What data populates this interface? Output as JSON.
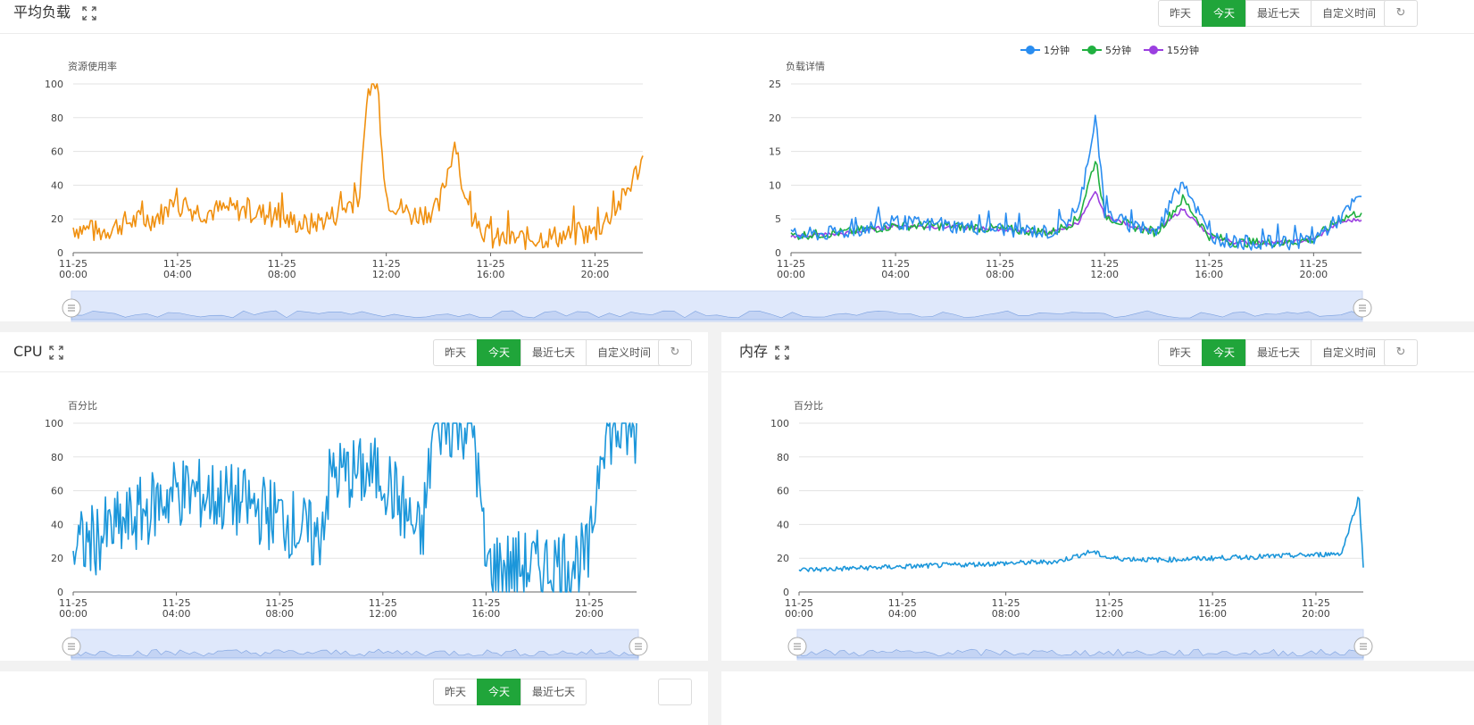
{
  "buttons": {
    "yesterday": "昨天",
    "today": "今天",
    "last7": "最近七天",
    "custom": "自定义时间"
  },
  "refresh_icon": "refresh-icon",
  "x_axis": {
    "dates": [
      "11-25",
      "11-25",
      "11-25",
      "11-25",
      "11-25",
      "11-25"
    ],
    "times": [
      "00:00",
      "04:00",
      "08:00",
      "12:00",
      "16:00",
      "20:00"
    ]
  },
  "load": {
    "title": "平均负载",
    "left_chart": {
      "type": "line",
      "ylabel": "资源使用率",
      "ylim": [
        0,
        100
      ],
      "yticks": [
        "0",
        "20",
        "40",
        "60",
        "80",
        "100"
      ],
      "color": "#f0900f"
    },
    "right_chart": {
      "type": "line",
      "ylabel": "负载详情",
      "ylim": [
        0,
        25
      ],
      "yticks": [
        "0",
        "5",
        "10",
        "15",
        "20",
        "25"
      ],
      "legend": [
        "1分钟",
        "5分钟",
        "15分钟"
      ],
      "colors": [
        "#2a8df0",
        "#20b040",
        "#9b3fe0"
      ]
    }
  },
  "cpu": {
    "title": "CPU",
    "chart": {
      "type": "line",
      "ylabel": "百分比",
      "ylim": [
        0,
        100
      ],
      "yticks": [
        "0",
        "20",
        "40",
        "60",
        "80",
        "100"
      ],
      "color": "#1b96da"
    }
  },
  "mem": {
    "title": "内存",
    "chart": {
      "type": "line",
      "ylabel": "百分比",
      "ylim": [
        0,
        100
      ],
      "yticks": [
        "0",
        "20",
        "40",
        "60",
        "80",
        "100"
      ],
      "color": "#1b96da"
    }
  },
  "chart_data": [
    {
      "type": "line",
      "title": "",
      "ylabel": "资源使用率",
      "ylim": [
        0,
        100
      ],
      "x": [
        "00:00",
        "01:00",
        "02:00",
        "03:00",
        "04:00",
        "05:00",
        "06:00",
        "07:00",
        "08:00",
        "09:00",
        "10:00",
        "11:00",
        "11:20",
        "11:40",
        "12:00",
        "13:00",
        "14:00",
        "14:40",
        "15:00",
        "16:00",
        "17:00",
        "18:00",
        "19:00",
        "20:00",
        "21:00",
        "21:50"
      ],
      "series": [
        {
          "values": [
            15,
            12,
            18,
            20,
            28,
            24,
            26,
            24,
            20,
            16,
            22,
            34,
            100,
            100,
            32,
            22,
            26,
            68,
            28,
            8,
            8,
            9,
            10,
            12,
            30,
            55
          ]
        }
      ]
    },
    {
      "type": "line",
      "title": "",
      "ylabel": "负载详情",
      "ylim": [
        0,
        25
      ],
      "x": [
        "00:00",
        "02:00",
        "04:00",
        "06:00",
        "08:00",
        "10:00",
        "11:00",
        "11:40",
        "12:00",
        "13:00",
        "14:00",
        "15:00",
        "16:00",
        "17:00",
        "18:00",
        "19:00",
        "20:00",
        "21:00",
        "21:50"
      ],
      "series": [
        {
          "name": "1分钟",
          "values": [
            2.5,
            3,
            4.5,
            4,
            3.5,
            3,
            6,
            20.5,
            6,
            4,
            3,
            11,
            2.5,
            1.5,
            1.5,
            1.5,
            2,
            5,
            8.5
          ]
        },
        {
          "name": "5分钟",
          "values": [
            2.5,
            3,
            4,
            4,
            3.5,
            3,
            5,
            14,
            5.5,
            4,
            3,
            8,
            2.5,
            1.5,
            1.5,
            1.5,
            2,
            5,
            6
          ]
        },
        {
          "name": "15分钟",
          "values": [
            2.5,
            2.8,
            4,
            3.8,
            3.5,
            3,
            4.5,
            9,
            5.5,
            4,
            3.2,
            6.5,
            2.5,
            1.5,
            1.5,
            1.5,
            2,
            4.5,
            5
          ]
        }
      ]
    },
    {
      "type": "line",
      "title": "",
      "ylabel": "百分比",
      "ylim": [
        0,
        100
      ],
      "x": [
        "00:00",
        "02:00",
        "04:00",
        "06:00",
        "08:00",
        "09:30",
        "10:00",
        "12:00",
        "13:30",
        "14:00",
        "15:30",
        "16:00",
        "18:00",
        "20:00",
        "20:30",
        "21:50"
      ],
      "series": [
        {
          "values": [
            25,
            40,
            60,
            55,
            45,
            30,
            70,
            70,
            30,
            100,
            100,
            15,
            15,
            20,
            95,
            95
          ]
        }
      ]
    },
    {
      "type": "line",
      "title": "",
      "ylabel": "百分比",
      "ylim": [
        0,
        100
      ],
      "x": [
        "00:00",
        "02:00",
        "04:00",
        "06:00",
        "08:00",
        "10:00",
        "11:20",
        "12:00",
        "14:00",
        "16:00",
        "18:00",
        "20:00",
        "21:00",
        "21:40",
        "21:50"
      ],
      "series": [
        {
          "values": [
            13,
            14,
            15,
            16,
            17,
            18,
            24,
            20,
            19,
            20,
            21,
            22,
            23,
            57,
            15
          ]
        }
      ]
    }
  ]
}
